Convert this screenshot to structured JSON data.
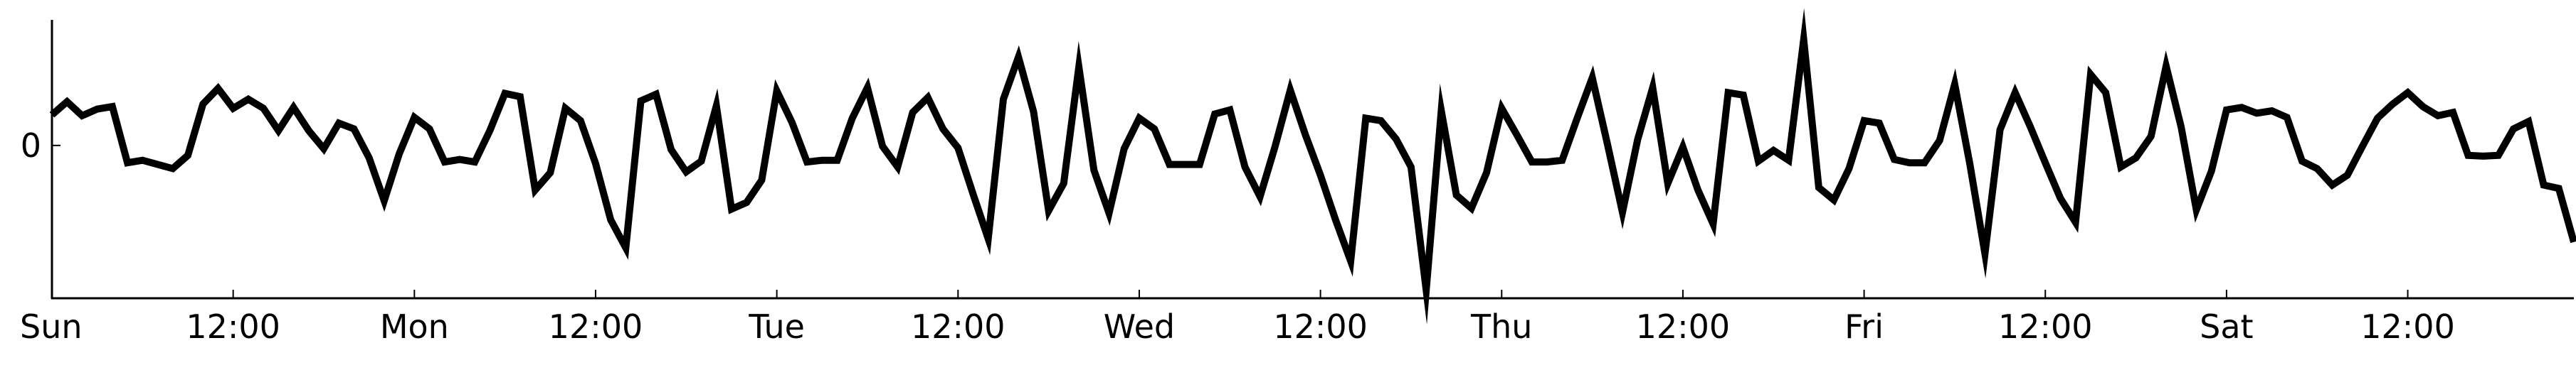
{
  "chart_data": {
    "type": "line",
    "title": "",
    "xlabel": "",
    "ylabel": "",
    "x_unit": "hours",
    "x_ticks": [
      {
        "x": 0,
        "label": "Sun"
      },
      {
        "x": 12,
        "label": "12:00"
      },
      {
        "x": 24,
        "label": "Mon"
      },
      {
        "x": 36,
        "label": "12:00"
      },
      {
        "x": 48,
        "label": "Tue"
      },
      {
        "x": 60,
        "label": "12:00"
      },
      {
        "x": 72,
        "label": "Wed"
      },
      {
        "x": 84,
        "label": "12:00"
      },
      {
        "x": 96,
        "label": "Thu"
      },
      {
        "x": 108,
        "label": "12:00"
      },
      {
        "x": 120,
        "label": "Fri"
      },
      {
        "x": 132,
        "label": "12:00"
      },
      {
        "x": 144,
        "label": "Sat"
      },
      {
        "x": 156,
        "label": "12:00"
      }
    ],
    "y_ticks": [
      {
        "y": 0,
        "label": "0"
      }
    ],
    "xlim": [
      0,
      167
    ],
    "ylim": [
      -1.85,
      1.52
    ],
    "grid": false,
    "legend": "none",
    "series": [
      {
        "color": "#000000",
        "x": [
          0,
          1,
          2,
          3,
          4,
          5,
          6,
          7,
          8,
          9,
          10,
          11,
          12,
          13,
          14,
          15,
          16,
          17,
          18,
          19,
          20,
          21,
          22,
          23,
          24,
          25,
          26,
          27,
          28,
          29,
          30,
          31,
          32,
          33,
          34,
          35,
          36,
          37,
          38,
          39,
          40,
          41,
          42,
          43,
          44,
          45,
          46,
          47,
          48,
          49,
          50,
          51,
          52,
          53,
          54,
          55,
          56,
          57,
          58,
          59,
          60,
          61,
          62,
          63,
          64,
          65,
          66,
          67,
          68,
          69,
          70,
          71,
          72,
          73,
          74,
          75,
          76,
          77,
          78,
          79,
          80,
          81,
          82,
          83,
          84,
          85,
          86,
          87,
          88,
          89,
          90,
          91,
          92,
          93,
          94,
          95,
          96,
          97,
          98,
          99,
          100,
          101,
          102,
          103,
          104,
          105,
          106,
          107,
          108,
          109,
          110,
          111,
          112,
          113,
          114,
          115,
          116,
          117,
          118,
          119,
          120,
          121,
          122,
          123,
          124,
          125,
          126,
          127,
          128,
          129,
          130,
          131,
          132,
          133,
          134,
          135,
          136,
          137,
          138,
          139,
          140,
          141,
          142,
          143,
          144,
          145,
          146,
          147,
          148,
          149,
          150,
          151,
          152,
          153,
          154,
          155,
          156,
          157,
          158,
          159,
          160,
          161,
          162,
          163,
          164,
          165,
          166,
          167
        ],
        "y": [
          0.37,
          0.53,
          0.36,
          0.44,
          0.47,
          -0.21,
          -0.18,
          -0.23,
          -0.28,
          -0.12,
          0.5,
          0.69,
          0.45,
          0.56,
          0.45,
          0.18,
          0.46,
          0.18,
          -0.04,
          0.27,
          0.2,
          -0.15,
          -0.67,
          -0.1,
          0.34,
          0.2,
          -0.2,
          -0.17,
          -0.2,
          0.18,
          0.63,
          0.59,
          -0.54,
          -0.33,
          0.45,
          0.3,
          -0.22,
          -0.9,
          -1.24,
          0.54,
          0.62,
          -0.05,
          -0.32,
          -0.19,
          0.48,
          -0.77,
          -0.69,
          -0.42,
          0.66,
          0.28,
          -0.2,
          -0.18,
          -0.18,
          0.33,
          0.7,
          -0.01,
          -0.26,
          0.4,
          0.58,
          0.2,
          -0.03,
          -0.59,
          -1.13,
          0.56,
          1.07,
          0.41,
          -0.79,
          -0.46,
          0.95,
          -0.3,
          -0.82,
          -0.04,
          0.33,
          0.2,
          -0.23,
          -0.23,
          -0.23,
          0.38,
          0.43,
          -0.26,
          -0.62,
          -0.01,
          0.67,
          0.13,
          -0.36,
          -0.9,
          -1.4,
          0.33,
          0.3,
          0.08,
          -0.26,
          -1.75,
          0.42,
          -0.6,
          -0.76,
          -0.33,
          0.45,
          0.13,
          -0.2,
          -0.2,
          -0.18,
          0.33,
          0.82,
          0.02,
          -0.81,
          0.07,
          0.7,
          -0.46,
          -0.02,
          -0.54,
          -0.95,
          0.64,
          0.61,
          -0.19,
          -0.06,
          -0.18,
          1.28,
          -0.51,
          -0.66,
          -0.28,
          0.3,
          0.27,
          -0.17,
          -0.21,
          -0.21,
          0.06,
          0.74,
          -0.22,
          -1.31,
          0.19,
          0.64,
          0.23,
          -0.21,
          -0.64,
          -0.93,
          0.86,
          0.64,
          -0.26,
          -0.15,
          0.11,
          0.96,
          0.22,
          -0.78,
          -0.31,
          0.43,
          0.46,
          0.39,
          0.42,
          0.34,
          -0.19,
          -0.28,
          -0.48,
          -0.36,
          -0.01,
          0.33,
          0.5,
          0.64,
          0.47,
          0.36,
          0.4,
          -0.12,
          -0.13,
          -0.12,
          0.2,
          0.29,
          -0.48,
          -0.52,
          -1.17
        ]
      }
    ]
  }
}
